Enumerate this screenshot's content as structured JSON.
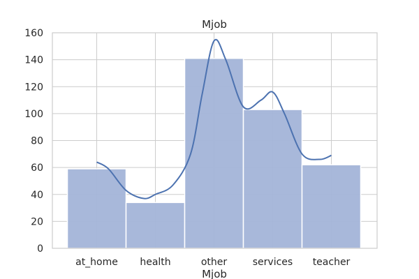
{
  "chart_data": {
    "type": "bar",
    "title": "Mjob",
    "xlabel": "Mjob",
    "ylabel": "",
    "categories": [
      "at_home",
      "health",
      "other",
      "services",
      "teacher"
    ],
    "values": [
      59,
      34,
      141,
      103,
      62
    ],
    "ylim": [
      0,
      160
    ],
    "yticks": [
      "0",
      "20",
      "40",
      "60",
      "80",
      "100",
      "120",
      "140",
      "160"
    ],
    "kde_line": {
      "x": [
        0,
        0.2,
        0.5,
        0.8,
        1.0,
        1.3,
        1.6,
        1.8,
        2.0,
        2.2,
        2.5,
        2.8,
        3.0,
        3.2,
        3.5,
        3.8,
        4.0
      ],
      "y": [
        64,
        59,
        43,
        37,
        40,
        47,
        70,
        115,
        154,
        140,
        105,
        110,
        116,
        100,
        70,
        66,
        69
      ]
    },
    "grid": true,
    "legend": "none",
    "colors": {
      "bar_fill": "#a3b4d8",
      "bar_edge": "#ffffff",
      "line": "#4c72b0",
      "grid": "#cccccc"
    }
  }
}
